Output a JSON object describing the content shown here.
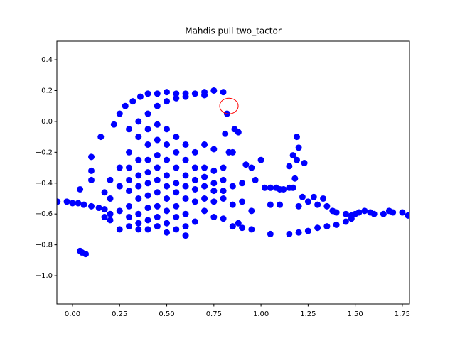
{
  "chart_data": {
    "type": "scatter",
    "title": "Mahdis pull two_tactor",
    "color": "#0000ff",
    "x": [
      -0.08,
      -0.03,
      0.0,
      0.03,
      0.06,
      0.1,
      0.14,
      0.17,
      0.04,
      0.05,
      0.07,
      0.04,
      0.22,
      0.25,
      0.28,
      0.32,
      0.36,
      0.4,
      0.45,
      0.5,
      0.55,
      0.6,
      0.65,
      0.7,
      0.75,
      0.8,
      0.35,
      0.4,
      0.45,
      0.5,
      0.55,
      0.6,
      0.7,
      0.15,
      0.82,
      0.81,
      0.86,
      0.88,
      0.85,
      0.83,
      0.3,
      0.3,
      0.3,
      0.3,
      0.3,
      0.3,
      0.3,
      0.3,
      0.35,
      0.35,
      0.35,
      0.35,
      0.35,
      0.35,
      0.35,
      0.35,
      0.4,
      0.4,
      0.4,
      0.4,
      0.4,
      0.4,
      0.4,
      0.4,
      0.4,
      0.45,
      0.45,
      0.45,
      0.45,
      0.45,
      0.45,
      0.45,
      0.45,
      0.45,
      0.5,
      0.5,
      0.5,
      0.5,
      0.5,
      0.5,
      0.5,
      0.5,
      0.5,
      0.55,
      0.55,
      0.55,
      0.55,
      0.55,
      0.55,
      0.55,
      0.55,
      0.6,
      0.6,
      0.6,
      0.6,
      0.6,
      0.6,
      0.6,
      0.6,
      0.65,
      0.65,
      0.65,
      0.65,
      0.65,
      0.65,
      0.7,
      0.7,
      0.7,
      0.7,
      0.7,
      0.7,
      0.75,
      0.75,
      0.75,
      0.75,
      0.75,
      0.75,
      0.8,
      0.8,
      0.8,
      0.8,
      0.8,
      0.2,
      0.2,
      0.2,
      0.2,
      0.25,
      0.25,
      0.25,
      0.25,
      0.17,
      0.17,
      0.17,
      0.1,
      0.1,
      0.1,
      0.85,
      0.9,
      0.92,
      0.95,
      0.97,
      1.0,
      1.02,
      1.05,
      1.08,
      1.1,
      1.12,
      1.15,
      1.17,
      1.18,
      1.19,
      1.2,
      1.19,
      1.17,
      1.15,
      1.23,
      1.22,
      1.25,
      1.28,
      1.3,
      1.33,
      1.35,
      1.38,
      1.4,
      1.45,
      1.48,
      1.5,
      1.52,
      1.55,
      1.58,
      1.6,
      1.65,
      1.68,
      1.7,
      1.75,
      1.78,
      0.85,
      0.9,
      0.95,
      1.05,
      1.15,
      1.2,
      1.25,
      1.3,
      1.35,
      1.4,
      1.45,
      1.48,
      1.05,
      1.1,
      1.2,
      0.95,
      0.9,
      0.85,
      0.88
    ],
    "values": [
      -0.52,
      -0.52,
      -0.53,
      -0.53,
      -0.54,
      -0.55,
      -0.56,
      -0.57,
      -0.84,
      -0.85,
      -0.86,
      -0.44,
      -0.02,
      0.05,
      0.1,
      0.13,
      0.16,
      0.18,
      0.18,
      0.19,
      0.18,
      0.18,
      0.18,
      0.19,
      0.2,
      0.19,
      0.0,
      0.05,
      0.1,
      0.13,
      0.15,
      0.16,
      0.17,
      -0.1,
      0.05,
      -0.08,
      -0.05,
      -0.07,
      -0.2,
      -0.2,
      -0.05,
      -0.2,
      -0.3,
      -0.38,
      -0.45,
      -0.55,
      -0.62,
      -0.68,
      -0.1,
      -0.25,
      -0.35,
      -0.42,
      -0.5,
      -0.6,
      -0.66,
      -0.7,
      -0.05,
      -0.15,
      -0.25,
      -0.33,
      -0.4,
      -0.48,
      -0.56,
      -0.64,
      -0.7,
      -0.02,
      -0.12,
      -0.22,
      -0.3,
      -0.38,
      -0.46,
      -0.55,
      -0.62,
      -0.68,
      -0.05,
      -0.15,
      -0.25,
      -0.35,
      -0.42,
      -0.5,
      -0.58,
      -0.66,
      -0.72,
      -0.1,
      -0.2,
      -0.3,
      -0.4,
      -0.46,
      -0.55,
      -0.62,
      -0.7,
      -0.15,
      -0.25,
      -0.35,
      -0.42,
      -0.5,
      -0.6,
      -0.68,
      -0.74,
      -0.2,
      -0.3,
      -0.38,
      -0.44,
      -0.52,
      -0.65,
      -0.15,
      -0.3,
      -0.36,
      -0.42,
      -0.5,
      -0.58,
      -0.18,
      -0.32,
      -0.4,
      -0.45,
      -0.52,
      -0.62,
      -0.3,
      -0.38,
      -0.45,
      -0.5,
      -0.63,
      -0.38,
      -0.5,
      -0.6,
      -0.64,
      -0.3,
      -0.42,
      -0.58,
      -0.7,
      -0.46,
      -0.57,
      -0.62,
      -0.23,
      -0.32,
      -0.38,
      -0.42,
      -0.4,
      -0.28,
      -0.3,
      -0.38,
      -0.25,
      -0.43,
      -0.43,
      -0.43,
      -0.44,
      -0.44,
      -0.43,
      -0.43,
      -0.37,
      -0.25,
      -0.17,
      -0.1,
      -0.22,
      -0.29,
      -0.27,
      -0.49,
      -0.52,
      -0.49,
      -0.54,
      -0.5,
      -0.55,
      -0.58,
      -0.59,
      -0.6,
      -0.61,
      -0.6,
      -0.59,
      -0.58,
      -0.59,
      -0.6,
      -0.6,
      -0.58,
      -0.59,
      -0.59,
      -0.61,
      -0.68,
      -0.69,
      -0.7,
      -0.73,
      -0.73,
      -0.72,
      -0.71,
      -0.69,
      -0.68,
      -0.67,
      -0.65,
      -0.63,
      -0.54,
      -0.54,
      -0.55,
      -0.58,
      -0.52,
      -0.54,
      -0.66
    ],
    "marker": {
      "x": 0.83,
      "y": 0.1,
      "color": "#ff0000"
    },
    "xlim": [
      -0.083,
      1.788
    ],
    "ylim": [
      -1.184,
      0.52
    ],
    "xticks": [
      {
        "value": 0,
        "label": "0.00"
      },
      {
        "value": 0.25,
        "label": "0.25"
      },
      {
        "value": 0.5,
        "label": "0.50"
      },
      {
        "value": 0.75,
        "label": "0.75"
      },
      {
        "value": 1,
        "label": "1.00"
      },
      {
        "value": 1.25,
        "label": "1.25"
      },
      {
        "value": 1.5,
        "label": "1.50"
      },
      {
        "value": 1.75,
        "label": "1.75"
      }
    ],
    "yticks": [
      0.4,
      0.2,
      {
        "value": 0,
        "label": "0.0"
      },
      {
        "value": -0.2,
        "label": "−0.2"
      },
      {
        "value": -0.4,
        "label": "−0.4"
      },
      {
        "value": -0.6,
        "label": "−0.6"
      },
      {
        "value": -0.8,
        "label": "−0.8"
      },
      {
        "value": -1.0,
        "label": "−1.0"
      }
    ]
  }
}
